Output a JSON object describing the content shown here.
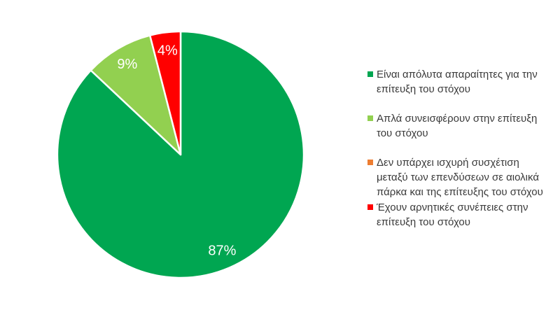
{
  "chart_data": {
    "type": "pie",
    "title": "",
    "legend_position": "right",
    "start_angle_deg": 0,
    "direction": "clockwise",
    "background_color": "#FFFFFF",
    "slice_border_color": "#FFFFFF",
    "data_label_color": "#FFFFFF",
    "slices": [
      {
        "label": "Είναι απόλυτα απαραίτητες για την επίτευξη του στόχου",
        "value": 87,
        "data_label": "87%",
        "color": "#00A651"
      },
      {
        "label": "Απλά συνεισφέρουν στην επίτευξη του στόχου",
        "value": 9,
        "data_label": "9%",
        "color": "#92D050"
      },
      {
        "label": "Δεν υπάρχει ισχυρή συσχέτιση μεταξύ των επενδύσεων σε αιολικά πάρκα και της επίτευξης του στόχου",
        "value": 0,
        "data_label": "",
        "color": "#ED7D31"
      },
      {
        "label": "Έχουν αρνητικές συνέπειες στην επίτευξη του στόχου",
        "value": 4,
        "data_label": "4%",
        "color": "#FF0000"
      }
    ]
  }
}
